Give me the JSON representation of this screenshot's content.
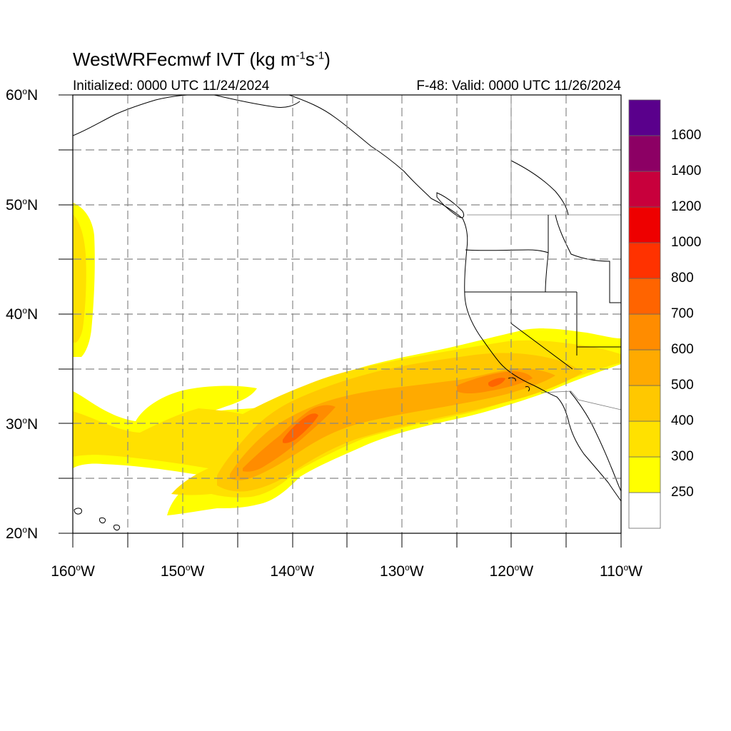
{
  "title": {
    "prefix": "WestWRFecmwf IVT (kg m",
    "exp1": "-1",
    "middle": "s",
    "exp2": "-1",
    "suffix": ")"
  },
  "initialized": "Initialized: 0000 UTC 11/24/2024",
  "valid": "F-48: Valid: 0000 UTC 11/26/2024",
  "map": {
    "lat_range": [
      20,
      60
    ],
    "lon_range": [
      -160,
      -110
    ],
    "lat_ticks": [
      {
        "value": 20,
        "label": "20",
        "suffix": "N"
      },
      {
        "value": 30,
        "label": "30",
        "suffix": "N"
      },
      {
        "value": 40,
        "label": "40",
        "suffix": "N"
      },
      {
        "value": 50,
        "label": "50",
        "suffix": "N"
      },
      {
        "value": 60,
        "label": "60",
        "suffix": "N"
      }
    ],
    "lon_ticks": [
      {
        "value": -160,
        "label": "160",
        "suffix": "W"
      },
      {
        "value": -150,
        "label": "150",
        "suffix": "W"
      },
      {
        "value": -140,
        "label": "140",
        "suffix": "W"
      },
      {
        "value": -130,
        "label": "130",
        "suffix": "W"
      },
      {
        "value": -120,
        "label": "120",
        "suffix": "W"
      },
      {
        "value": -110,
        "label": "110",
        "suffix": "W"
      }
    ],
    "gridlines": "dashed every 5 degrees",
    "field": "integrated vapor transport",
    "features": [
      "atmospheric river from 25N 155W to 35N 112W, max about 700 near 28N 141W and 34N 122W",
      "weak moisture plume along 160W between 36N and 50N"
    ]
  },
  "colorbar": {
    "levels": [
      {
        "value": 250,
        "color": "#ffff00",
        "label": "250"
      },
      {
        "value": 300,
        "color": "#ffe100",
        "label": "300"
      },
      {
        "value": 400,
        "color": "#ffc800",
        "label": "400"
      },
      {
        "value": 500,
        "color": "#ffaa00",
        "label": "500"
      },
      {
        "value": 600,
        "color": "#ff8c00",
        "label": "600"
      },
      {
        "value": 700,
        "color": "#ff6400",
        "label": "700"
      },
      {
        "value": 800,
        "color": "#ff3200",
        "label": "800"
      },
      {
        "value": 1000,
        "color": "#ee0000",
        "label": "1000"
      },
      {
        "value": 1200,
        "color": "#c8003c",
        "label": "1200"
      },
      {
        "value": 1400,
        "color": "#8c0064",
        "label": "1400"
      },
      {
        "value": 1600,
        "color": "#5a008c",
        "label": "1600"
      }
    ],
    "below_color": "#ffffff"
  }
}
